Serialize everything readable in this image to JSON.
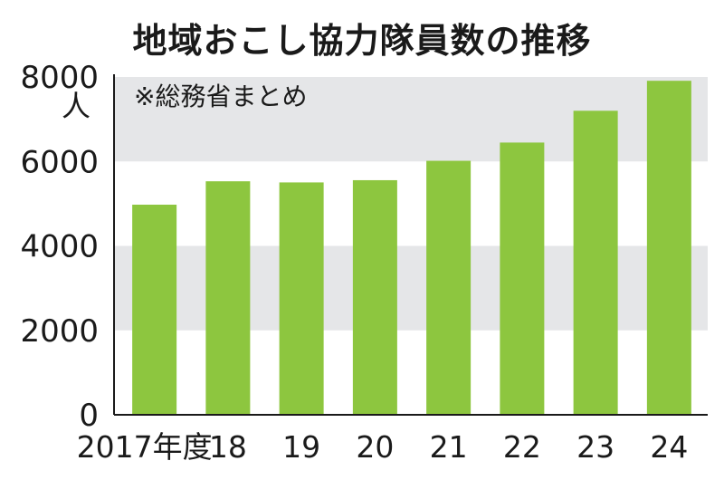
{
  "chart_data": {
    "type": "bar",
    "title": "地域おこし協力隊員数の推移",
    "note": "※総務省まとめ",
    "y_unit": "人",
    "categories": [
      "2017年度",
      "18",
      "19",
      "20",
      "21",
      "22",
      "23",
      "24"
    ],
    "values": [
      4976,
      5530,
      5503,
      5556,
      6015,
      6447,
      7200,
      7910
    ],
    "ylim": [
      0,
      8000
    ],
    "y_ticks": [
      "0",
      "2000",
      "4000",
      "6000",
      "8000"
    ],
    "grid": "alternating horizontal bands",
    "colors": {
      "bar": "#8dc63f",
      "band": "#e5e6e8",
      "axis": "#1a1a1a"
    }
  }
}
